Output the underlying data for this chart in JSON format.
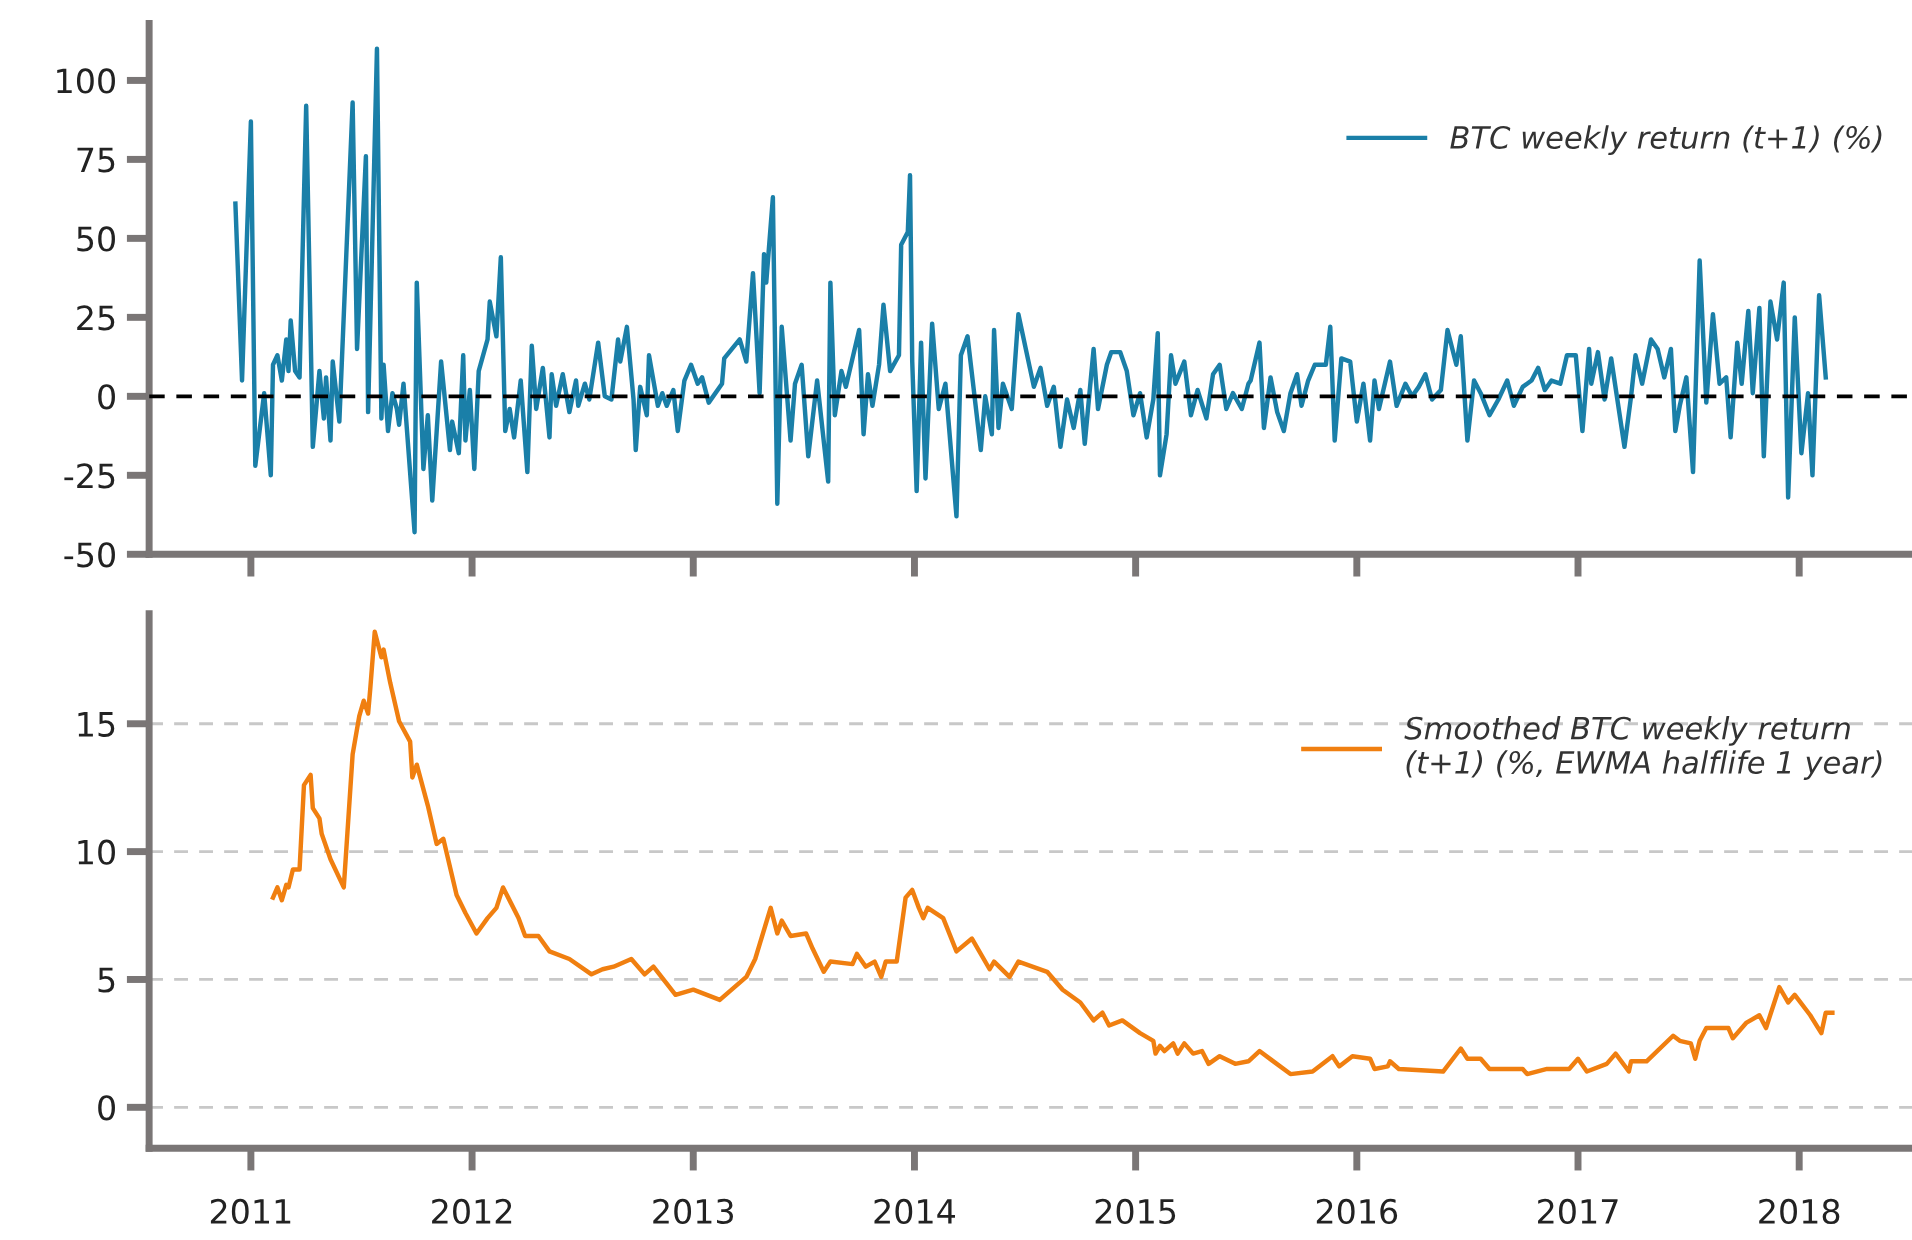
{
  "chart_data": [
    {
      "type": "line",
      "x": [
        2010.93,
        2010.96,
        2011.0,
        2011.02,
        2011.06,
        2011.09,
        2011.1,
        2011.12,
        2011.14,
        2011.16,
        2011.17,
        2011.18,
        2011.2,
        2011.22,
        2011.25,
        2011.28,
        2011.31,
        2011.33,
        2011.34,
        2011.36,
        2011.37,
        2011.4,
        2011.46,
        2011.48,
        2011.52,
        2011.53,
        2011.57,
        2011.59,
        2011.6,
        2011.62,
        2011.64,
        2011.66,
        2011.67,
        2011.69,
        2011.74,
        2011.75,
        2011.78,
        2011.8,
        2011.82,
        2011.86,
        2011.9,
        2011.91,
        2011.94,
        2011.96,
        2011.97,
        2011.99,
        2012.01,
        2012.03,
        2012.07,
        2012.08,
        2012.11,
        2012.13,
        2012.15,
        2012.17,
        2012.19,
        2012.22,
        2012.25,
        2012.27,
        2012.29,
        2012.32,
        2012.35,
        2012.36,
        2012.38,
        2012.41,
        2012.44,
        2012.47,
        2012.48,
        2012.51,
        2012.53,
        2012.57,
        2012.6,
        2012.63,
        2012.66,
        2012.67,
        2012.7,
        2012.73,
        2012.74,
        2012.76,
        2012.79,
        2012.8,
        2012.84,
        2012.86,
        2012.88,
        2012.91,
        2012.93,
        2012.96,
        2012.99,
        2013.02,
        2013.04,
        2013.07,
        2013.13,
        2013.14,
        2013.21,
        2013.24,
        2013.27,
        2013.3,
        2013.32,
        2013.33,
        2013.36,
        2013.38,
        2013.4,
        2013.44,
        2013.46,
        2013.49,
        2013.52,
        2013.56,
        2013.61,
        2013.62,
        2013.64,
        2013.67,
        2013.69,
        2013.75,
        2013.77,
        2013.79,
        2013.81,
        2013.84,
        2013.86,
        2013.89,
        2013.93,
        2013.94,
        2013.97,
        2013.98,
        2013.99,
        2014.01,
        2014.03,
        2014.05,
        2014.08,
        2014.11,
        2014.14,
        2014.19,
        2014.21,
        2014.24,
        2014.3,
        2014.32,
        2014.35,
        2014.36,
        2014.38,
        2014.4,
        2014.44,
        2014.47,
        2014.54,
        2014.57,
        2014.6,
        2014.63,
        2014.66,
        2014.69,
        2014.72,
        2014.75,
        2014.77,
        2014.81,
        2014.83,
        2014.87,
        2014.89,
        2014.93,
        2014.96,
        2014.99,
        2015.02,
        2015.05,
        2015.08,
        2015.1,
        2015.11,
        2015.14,
        2015.16,
        2015.18,
        2015.22,
        2015.25,
        2015.28,
        2015.32,
        2015.35,
        2015.38,
        2015.41,
        2015.44,
        2015.48,
        2015.51,
        2015.52,
        2015.56,
        2015.58,
        2015.61,
        2015.64,
        2015.67,
        2015.7,
        2015.73,
        2015.75,
        2015.78,
        2015.81,
        2015.86,
        2015.88,
        2015.9,
        2015.93,
        2015.97,
        2016.0,
        2016.03,
        2016.06,
        2016.08,
        2016.1,
        2016.15,
        2016.18,
        2016.22,
        2016.25,
        2016.28,
        2016.31,
        2016.34,
        2016.38,
        2016.41,
        2016.45,
        2016.47,
        2016.5,
        2016.53,
        2016.56,
        2016.6,
        2016.64,
        2016.68,
        2016.71,
        2016.75,
        2016.79,
        2016.82,
        2016.85,
        2016.88,
        2016.92,
        2016.95,
        2016.99,
        2017.02,
        2017.05,
        2017.06,
        2017.09,
        2017.12,
        2017.15,
        2017.21,
        2017.24,
        2017.26,
        2017.29,
        2017.33,
        2017.36,
        2017.39,
        2017.42,
        2017.44,
        2017.46,
        2017.49,
        2017.52,
        2017.55,
        2017.58,
        2017.61,
        2017.64,
        2017.67,
        2017.69,
        2017.72,
        2017.74,
        2017.77,
        2017.79,
        2017.82,
        2017.84,
        2017.87,
        2017.9,
        2017.93,
        2017.95,
        2017.98,
        2018.01,
        2018.04,
        2018.06,
        2018.09,
        2018.12
      ],
      "series": [
        {
          "name": "BTC weekly return (t+1) (%)",
          "color": "#1a7fa8",
          "values": [
            61,
            5,
            87,
            -22,
            1,
            -25,
            10,
            13,
            5,
            18,
            8,
            24,
            8,
            6,
            92,
            -16,
            8,
            -7,
            6,
            -14,
            11,
            -8,
            93,
            15,
            76,
            -5,
            110,
            -7,
            10,
            -11,
            1,
            -4,
            -9,
            4,
            -43,
            36,
            -23,
            -6,
            -33,
            11,
            -17,
            -8,
            -18,
            13,
            -14,
            2,
            -23,
            8,
            18,
            30,
            19,
            44,
            -11,
            -4,
            -13,
            5,
            -24,
            16,
            -4,
            9,
            -13,
            7,
            -3,
            7,
            -5,
            5,
            -3,
            4,
            -1,
            17,
            0,
            -1,
            18,
            11,
            22,
            -1,
            -17,
            3,
            -6,
            13,
            -3,
            1,
            -3,
            2,
            -11,
            5,
            10,
            4,
            6,
            -2,
            4,
            12,
            18,
            11,
            39,
            1,
            45,
            36,
            63,
            -34,
            22,
            -14,
            4,
            10,
            -19,
            5,
            -27,
            36,
            -6,
            8,
            3,
            21,
            -12,
            7,
            -3,
            10,
            29,
            8,
            13,
            48,
            52,
            70,
            11,
            -30,
            17,
            -26,
            23,
            -4,
            4,
            -38,
            13,
            19,
            -17,
            0,
            -12,
            21,
            -10,
            4,
            -4,
            26,
            3,
            9,
            -3,
            3,
            -16,
            -1,
            -10,
            2,
            -15,
            15,
            -4,
            10,
            14,
            14,
            8,
            -6,
            1,
            -13,
            -1,
            20,
            -25,
            -12,
            13,
            4,
            11,
            -6,
            2,
            -7,
            7,
            10,
            -4,
            1,
            -4,
            4,
            5,
            17,
            -10,
            6,
            -5,
            -11,
            1,
            7,
            -3,
            5,
            10,
            10,
            22,
            -14,
            12,
            11,
            -8,
            4,
            -14,
            5,
            -4,
            11,
            -3,
            4,
            0,
            3,
            7,
            -1,
            2,
            21,
            10,
            19,
            -14,
            5,
            1,
            -6,
            -1,
            5,
            -3,
            3,
            5,
            9,
            2,
            5,
            4,
            13,
            13,
            -11,
            15,
            4,
            14,
            -1,
            12,
            -16,
            0,
            13,
            4,
            18,
            15,
            6,
            15,
            -11,
            -3,
            6,
            -24,
            43,
            -2,
            26,
            4,
            6,
            -13,
            17,
            4,
            27,
            1,
            28,
            -19,
            30,
            18,
            36,
            -32,
            25,
            -18,
            1,
            -25,
            32,
            6
          ]
        }
      ],
      "ylim": [
        -50,
        118
      ],
      "yticks": [
        100,
        75,
        50,
        25,
        0,
        -25,
        -50
      ],
      "xlim": [
        2010.54,
        2018.51
      ],
      "xticks": [
        {
          "value": 2011,
          "label": null
        },
        {
          "value": 2012,
          "label": null
        },
        {
          "value": 2013,
          "label": null
        },
        {
          "value": 2014,
          "label": null
        },
        {
          "value": 2015,
          "label": null
        },
        {
          "value": 2016,
          "label": null
        },
        {
          "value": 2017,
          "label": null
        },
        {
          "value": 2018,
          "label": null
        }
      ],
      "tick_labels": "y",
      "grid": false,
      "legend": "top right",
      "line_style": "solid",
      "marker": "none",
      "ref_lines": [
        {
          "axis": "y",
          "value": 0,
          "color": "#000000",
          "line_style": "dashed"
        }
      ]
    },
    {
      "type": "line",
      "x": [
        2011.1,
        2011.12,
        2011.14,
        2011.16,
        2011.17,
        2011.19,
        2011.22,
        2011.24,
        2011.27,
        2011.28,
        2011.31,
        2011.32,
        2011.36,
        2011.42,
        2011.46,
        2011.49,
        2011.51,
        2011.53,
        2011.54,
        2011.56,
        2011.59,
        2011.6,
        2011.63,
        2011.67,
        2011.72,
        2011.73,
        2011.75,
        2011.8,
        2011.84,
        2011.87,
        2011.93,
        2011.97,
        2012.02,
        2012.07,
        2012.11,
        2012.14,
        2012.21,
        2012.24,
        2012.3,
        2012.35,
        2012.44,
        2012.54,
        2012.59,
        2012.64,
        2012.72,
        2012.78,
        2012.82,
        2012.92,
        2013.0,
        2013.12,
        2013.24,
        2013.28,
        2013.35,
        2013.38,
        2013.4,
        2013.44,
        2013.51,
        2013.54,
        2013.59,
        2013.62,
        2013.72,
        2013.74,
        2013.78,
        2013.82,
        2013.85,
        2013.87,
        2013.92,
        2013.96,
        2013.99,
        2014.02,
        2014.04,
        2014.06,
        2014.13,
        2014.19,
        2014.26,
        2014.34,
        2014.36,
        2014.43,
        2014.47,
        2014.6,
        2014.67,
        2014.75,
        2014.81,
        2014.85,
        2014.88,
        2014.94,
        2015.02,
        2015.08,
        2015.09,
        2015.11,
        2015.13,
        2015.17,
        2015.19,
        2015.22,
        2015.26,
        2015.3,
        2015.33,
        2015.38,
        2015.45,
        2015.51,
        2015.56,
        2015.7,
        2015.8,
        2015.89,
        2015.92,
        2015.98,
        2016.06,
        2016.08,
        2016.14,
        2016.15,
        2016.19,
        2016.39,
        2016.47,
        2016.5,
        2016.56,
        2016.6,
        2016.75,
        2016.77,
        2016.86,
        2016.96,
        2017.0,
        2017.04,
        2017.13,
        2017.17,
        2017.23,
        2017.24,
        2017.31,
        2017.43,
        2017.46,
        2017.51,
        2017.53,
        2017.55,
        2017.58,
        2017.68,
        2017.7,
        2017.76,
        2017.82,
        2017.85,
        2017.91,
        2017.95,
        2017.98,
        2018.05,
        2018.1,
        2018.12,
        2018.15
      ],
      "series": [
        {
          "name": "Smoothed BTC weekly return\n(t+1) (%, EWMA halflife 1 year)",
          "color": "#f07f10",
          "values": [
            8.2,
            8.6,
            8.1,
            8.7,
            8.6,
            9.3,
            9.3,
            12.6,
            13.0,
            11.7,
            11.3,
            10.7,
            9.7,
            8.6,
            13.8,
            15.3,
            15.9,
            15.4,
            16.4,
            18.6,
            17.6,
            17.9,
            16.6,
            15.1,
            14.3,
            12.9,
            13.4,
            11.8,
            10.3,
            10.5,
            8.3,
            7.6,
            6.8,
            7.4,
            7.8,
            8.6,
            7.4,
            6.7,
            6.7,
            6.1,
            5.8,
            5.2,
            5.4,
            5.5,
            5.8,
            5.2,
            5.5,
            4.4,
            4.6,
            4.2,
            5.1,
            5.8,
            7.8,
            6.8,
            7.3,
            6.7,
            6.8,
            6.2,
            5.3,
            5.7,
            5.6,
            6.0,
            5.5,
            5.7,
            5.1,
            5.7,
            5.7,
            8.2,
            8.5,
            7.8,
            7.4,
            7.8,
            7.4,
            6.1,
            6.6,
            5.4,
            5.7,
            5.1,
            5.7,
            5.3,
            4.6,
            4.1,
            3.4,
            3.7,
            3.2,
            3.4,
            2.9,
            2.6,
            2.1,
            2.4,
            2.2,
            2.5,
            2.1,
            2.5,
            2.1,
            2.2,
            1.7,
            2.0,
            1.7,
            1.8,
            2.2,
            1.3,
            1.4,
            2.0,
            1.6,
            2.0,
            1.9,
            1.5,
            1.6,
            1.8,
            1.5,
            1.4,
            2.3,
            1.9,
            1.9,
            1.5,
            1.5,
            1.3,
            1.5,
            1.5,
            1.9,
            1.4,
            1.7,
            2.1,
            1.4,
            1.8,
            1.8,
            2.8,
            2.6,
            2.5,
            1.9,
            2.6,
            3.1,
            3.1,
            2.7,
            3.3,
            3.6,
            3.1,
            4.7,
            4.1,
            4.4,
            3.6,
            2.9,
            3.7,
            3.7
          ]
        }
      ],
      "ylim": [
        -1.6,
        19.3
      ],
      "yticks": [
        0,
        5,
        10,
        15
      ],
      "xlim": [
        2010.54,
        2018.51
      ],
      "xticks": [
        {
          "value": 2011,
          "label": "2011"
        },
        {
          "value": 2012,
          "label": "2012"
        },
        {
          "value": 2013,
          "label": "2013"
        },
        {
          "value": 2014,
          "label": "2014"
        },
        {
          "value": 2015,
          "label": "2015"
        },
        {
          "value": 2016,
          "label": "2016"
        },
        {
          "value": 2017,
          "label": "2017"
        },
        {
          "value": 2018,
          "label": "2018"
        }
      ],
      "grid": "y",
      "legend": "top right",
      "line_style": "solid",
      "marker": "none"
    }
  ]
}
